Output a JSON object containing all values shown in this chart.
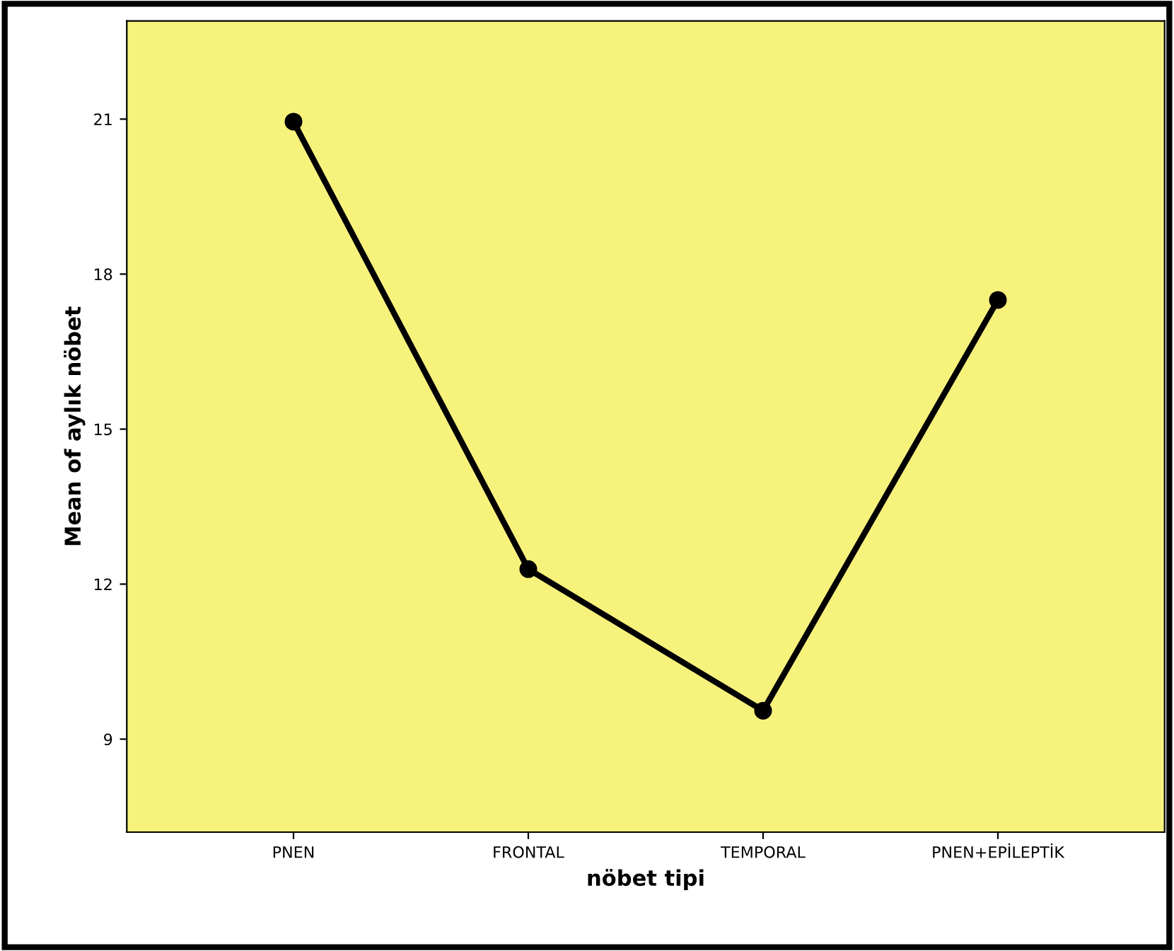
{
  "chart_data": {
    "type": "line",
    "xlabel": "nöbet tipi",
    "ylabel": "Mean of aylık nöbet",
    "categories": [
      "PNEN",
      "FRONTAL",
      "TEMPORAL",
      "PNEN+EPİLEPTİK"
    ],
    "series": [
      {
        "color": "#000000",
        "values": [
          20.95,
          12.29,
          9.55,
          17.5
        ]
      }
    ],
    "ylim": [
      7.2,
      22.9
    ],
    "yticks": [
      9,
      12,
      15,
      18,
      21
    ],
    "grid": false,
    "marker": "circle",
    "line_style": "solid"
  }
}
